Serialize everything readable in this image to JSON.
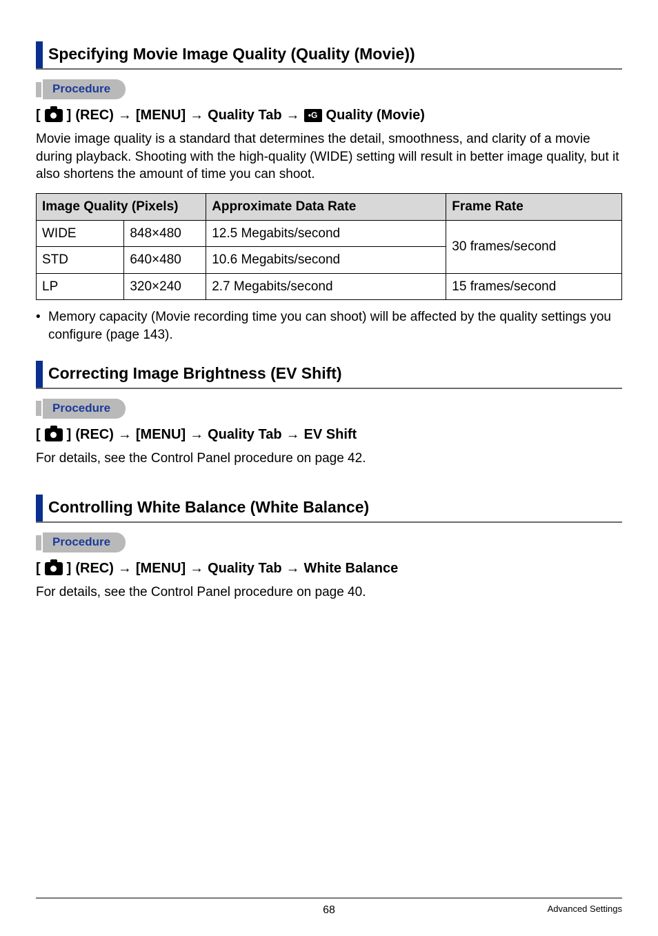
{
  "sections": {
    "s1": {
      "title": "Specifying Movie Image Quality (Quality (Movie))"
    },
    "s2": {
      "title": "Correcting Image Brightness (EV Shift)"
    },
    "s3": {
      "title": "Controlling White Balance (White Balance)"
    }
  },
  "labels": {
    "procedure": "Procedure",
    "rec": "(REC)",
    "menu": "[MENU]",
    "quality_tab": "Quality Tab",
    "quality_movie": "Quality (Movie)",
    "ev_shift": "EV Shift",
    "white_balance": "White Balance",
    "arrow": "→",
    "bracket_open": "[",
    "bracket_close": "]",
    "times": "×"
  },
  "s1_body": "Movie image quality is a standard that determines the detail, smoothness, and clarity of a movie during playback. Shooting with the high-quality (WIDE) setting will result in better image quality, but it also shortens the amount of time you can shoot.",
  "table": {
    "headers": {
      "iq": "Image Quality (Pixels)",
      "adr": "Approximate Data Rate",
      "fr": "Frame Rate"
    },
    "rows": [
      {
        "name": "WIDE",
        "w": "848",
        "h": "480",
        "rate": "12.5 Megabits/second"
      },
      {
        "name": "STD",
        "w": "640",
        "h": "480",
        "rate": "10.6 Megabits/second"
      },
      {
        "name": "LP",
        "w": "320",
        "h": "240",
        "rate": "2.7 Megabits/second"
      }
    ],
    "frame_rates": {
      "r30": "30 frames/second",
      "r15": "15 frames/second"
    }
  },
  "s1_note": "Memory capacity (Movie recording time you can shoot) will be affected by the quality settings you configure (page 143).",
  "s2_body": "For details, see the Control Panel procedure on page 42.",
  "s3_body": "For details, see the Control Panel procedure on page 40.",
  "footer": {
    "page": "68",
    "right": "Advanced Settings"
  },
  "colors": {
    "bar": "#0a2f8f",
    "rule": "#6b6b6b",
    "pill_bg": "#b9b9b9",
    "pill_fg": "#1b3a9a",
    "th_bg": "#d8d8d8"
  }
}
